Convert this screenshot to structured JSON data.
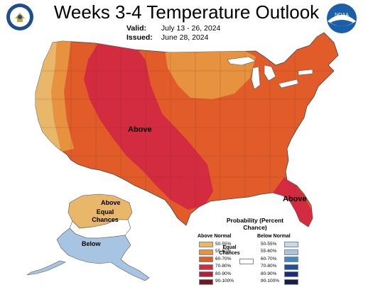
{
  "title": "Weeks 3-4 Temperature Outlook",
  "valid": {
    "label": "Valid:",
    "value": "July 13 - 26, 2024"
  },
  "issued": {
    "label": "Issued:",
    "value": "June 28, 2024"
  },
  "map_labels": {
    "west_above": "Above",
    "florida_above": "Above",
    "alaska_above": "Above",
    "alaska_equal": "Equal Chances",
    "alaska_below": "Below"
  },
  "noaa_logo_text": "NOAA",
  "legend": {
    "title": "Probability (Percent Chance)",
    "above_header": "Above Normal",
    "below_header": "Below Normal",
    "equal_label": "Equal Chances",
    "above": [
      {
        "label": "50-55%",
        "color": "#E8B76A"
      },
      {
        "label": "55-60%",
        "color": "#E6923F"
      },
      {
        "label": "60-70%",
        "color": "#E25C2A"
      },
      {
        "label": "70-80%",
        "color": "#D32B3F"
      },
      {
        "label": "80-90%",
        "color": "#B0203A"
      },
      {
        "label": "90-100%",
        "color": "#6E1A20"
      }
    ],
    "below": [
      {
        "label": "50-55%",
        "color": "#C6D8EC"
      },
      {
        "label": "55-60%",
        "color": "#A7C4E3"
      },
      {
        "label": "60-70%",
        "color": "#3D8CC7"
      },
      {
        "label": "70-80%",
        "color": "#214E9A"
      },
      {
        "label": "80-90%",
        "color": "#1C2C7A"
      },
      {
        "label": "90-100%",
        "color": "#151C50"
      }
    ]
  },
  "colors": {
    "above_50_55": "#E8B76A",
    "above_55_60": "#E6923F",
    "above_60_70": "#E25C2A",
    "above_70_80": "#D32B3F",
    "equal": "#FFFFFF",
    "below_55_60": "#A7C4E3"
  }
}
